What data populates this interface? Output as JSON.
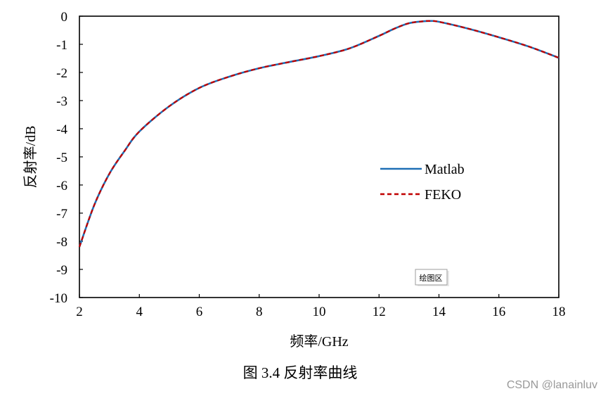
{
  "chart_data": {
    "type": "line",
    "xlabel": "频率/GHz",
    "ylabel": "反射率/dB",
    "xlim": [
      2,
      18
    ],
    "ylim": [
      -10,
      0
    ],
    "x_ticks": [
      "2",
      "4",
      "6",
      "8",
      "10",
      "12",
      "14",
      "16",
      "18"
    ],
    "y_ticks": [
      "0",
      "-1",
      "-2",
      "-3",
      "-4",
      "-5",
      "-6",
      "-7",
      "-8",
      "-9",
      "-10"
    ],
    "grid": false,
    "legend_position": "right-middle",
    "series": [
      {
        "name": "Matlab",
        "color": "#1f6fb5",
        "style": "solid",
        "x": [
          2,
          2.5,
          3,
          3.5,
          4,
          5,
          6,
          7,
          8,
          9,
          10,
          11,
          12,
          12.5,
          13,
          13.5,
          13.7,
          14,
          15,
          16,
          17,
          18
        ],
        "y": [
          -8.2,
          -6.7,
          -5.6,
          -4.8,
          -4.1,
          -3.2,
          -2.55,
          -2.15,
          -1.85,
          -1.63,
          -1.42,
          -1.15,
          -0.7,
          -0.45,
          -0.25,
          -0.18,
          -0.17,
          -0.2,
          -0.45,
          -0.75,
          -1.08,
          -1.48
        ]
      },
      {
        "name": "FEKO",
        "color": "#c00000",
        "style": "dashed",
        "x": [
          2,
          2.5,
          3,
          3.5,
          4,
          5,
          6,
          7,
          8,
          9,
          10,
          11,
          12,
          12.5,
          13,
          13.5,
          13.7,
          14,
          15,
          16,
          17,
          18
        ],
        "y": [
          -8.2,
          -6.7,
          -5.6,
          -4.8,
          -4.1,
          -3.2,
          -2.55,
          -2.15,
          -1.85,
          -1.63,
          -1.42,
          -1.15,
          -0.7,
          -0.45,
          -0.25,
          -0.18,
          -0.17,
          -0.2,
          -0.45,
          -0.75,
          -1.08,
          -1.48
        ]
      }
    ]
  },
  "tooltip": "绘图区",
  "caption": "图 3.4  反射率曲线",
  "watermark": "CSDN @lanainluv"
}
